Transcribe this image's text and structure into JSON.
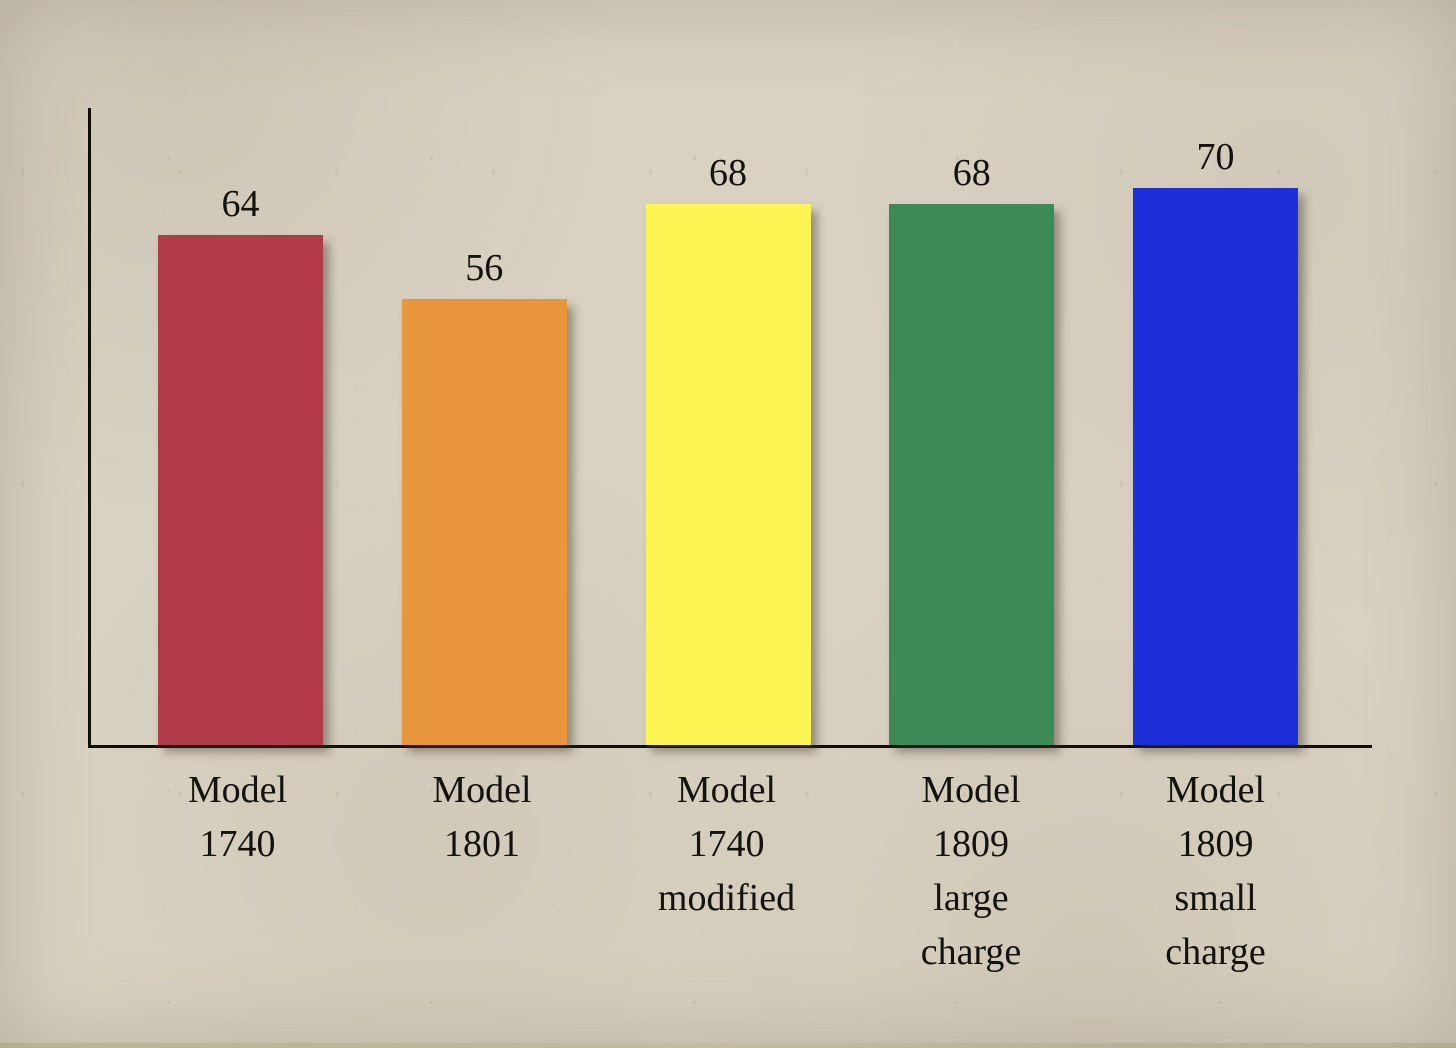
{
  "page": {
    "background_color": "#d9d2c2",
    "text_color": "#14120c"
  },
  "chart_data": {
    "type": "bar",
    "title": "",
    "xlabel": "",
    "ylabel": "",
    "categories": [
      "Model 1740",
      "Model 1801",
      "Model 1740 modified",
      "Model 1809 large charge",
      "Model 1809 small charge"
    ],
    "category_lines": [
      [
        "Model",
        "1740"
      ],
      [
        "Model",
        "1801"
      ],
      [
        "Model",
        "1740",
        "modified"
      ],
      [
        "Model",
        "1809",
        "large",
        "charge"
      ],
      [
        "Model",
        "1809",
        "small",
        "charge"
      ]
    ],
    "values": [
      64,
      56,
      68,
      68,
      70
    ],
    "value_labels": [
      "64",
      "56",
      "68",
      "68",
      "70"
    ],
    "bar_colors": [
      "#b13b46",
      "#e9953b",
      "#fbf452",
      "#3d8a56",
      "#1c2fd8"
    ],
    "ylim": [
      0,
      80
    ],
    "grid": false,
    "legend": "none",
    "value_labels_shown": true,
    "axis_color": "#111008"
  }
}
